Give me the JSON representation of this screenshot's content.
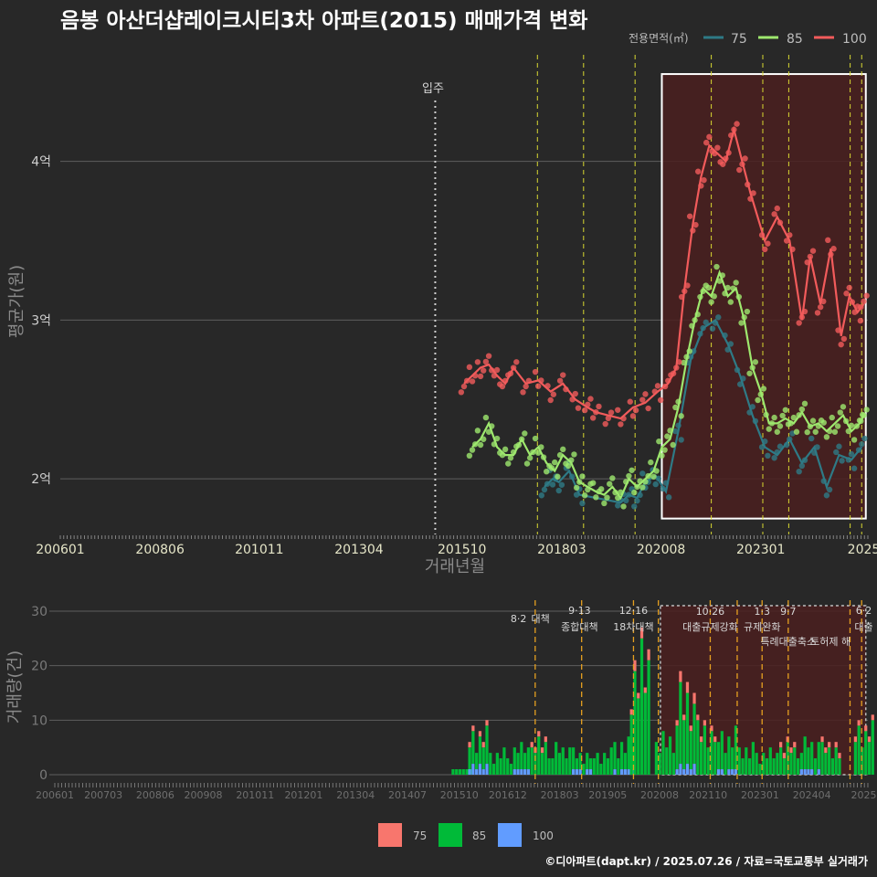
{
  "title": "음봉 아산더샵레이크시티3차 아파트(2015) 매매가격 변화",
  "credit": "©디아파트(dapt.kr) / 2025.07.26 / 자료=국토교통부 실거래가",
  "legend_top": {
    "label": "전용면적(㎡)",
    "items": [
      {
        "name": "75",
        "color": "#2e7a86"
      },
      {
        "name": "85",
        "color": "#9ee86e"
      },
      {
        "name": "100",
        "color": "#f25b5b"
      }
    ]
  },
  "legend_bottom": {
    "items": [
      {
        "name": "75",
        "color": "#f8766d"
      },
      {
        "name": "85",
        "color": "#00ba38"
      },
      {
        "name": "100",
        "color": "#619cff"
      }
    ]
  },
  "movein_label": "입주",
  "chart_data": [
    {
      "type": "line",
      "title": "음봉 아산더샵레이크시티3차 아파트(2015) 매매가격 변화",
      "xlabel": "거래년월",
      "ylabel": "평균가(원)",
      "x_ticks": [
        "200601",
        "200806",
        "201011",
        "201304",
        "201510",
        "201803",
        "202008",
        "202301",
        "2025"
      ],
      "y_ticks": [
        {
          "value": 2,
          "label": "2억"
        },
        {
          "value": 3,
          "label": "3억"
        },
        {
          "value": 4,
          "label": "4억"
        }
      ],
      "xlim": [
        2006.0,
        2025.6
      ],
      "ylim": [
        1.65,
        4.7
      ],
      "movein_year": 2015.1,
      "policy_lines_year": [
        2017.58,
        2018.7,
        2019.95,
        2021.8,
        2023.05,
        2023.68,
        2025.17,
        2025.45
      ],
      "highlight_range_year": [
        2020.6,
        2025.55
      ],
      "highlight_y_range": [
        1.75,
        4.55
      ],
      "series": [
        {
          "name": "75",
          "x": [
            2017.75,
            2017.95,
            2018.1,
            2018.35,
            2018.6,
            2019.6,
            2019.8,
            2020.0,
            2020.2,
            2020.45,
            2020.7,
            2021.0,
            2021.3,
            2021.6,
            2021.9,
            2022.2,
            2022.5,
            2022.8,
            2023.1,
            2023.4,
            2023.7,
            2024.0,
            2024.3,
            2024.6,
            2024.9,
            2025.2,
            2025.45
          ],
          "y": [
            1.95,
            2.0,
            1.98,
            2.05,
            1.9,
            1.85,
            1.9,
            1.88,
            1.98,
            2.02,
            1.92,
            2.3,
            2.75,
            2.95,
            3.0,
            2.85,
            2.65,
            2.4,
            2.2,
            2.15,
            2.25,
            2.1,
            2.2,
            1.95,
            2.15,
            2.12,
            2.2
          ]
        },
        {
          "name": "85",
          "x": [
            2016.0,
            2016.2,
            2016.4,
            2016.6,
            2016.8,
            2017.0,
            2017.2,
            2017.4,
            2017.6,
            2017.8,
            2018.0,
            2018.2,
            2018.4,
            2018.6,
            2018.8,
            2019.0,
            2019.2,
            2019.4,
            2019.6,
            2019.8,
            2020.0,
            2020.2,
            2020.4,
            2020.6,
            2020.8,
            2021.0,
            2021.2,
            2021.4,
            2021.6,
            2021.8,
            2022.0,
            2022.2,
            2022.4,
            2022.6,
            2022.8,
            2023.0,
            2023.2,
            2023.4,
            2023.6,
            2023.8,
            2024.0,
            2024.2,
            2024.4,
            2024.6,
            2024.8,
            2025.0,
            2025.2,
            2025.4,
            2025.5
          ],
          "y": [
            2.2,
            2.25,
            2.35,
            2.2,
            2.15,
            2.15,
            2.25,
            2.15,
            2.2,
            2.1,
            2.05,
            2.15,
            2.1,
            1.98,
            1.95,
            1.92,
            1.9,
            1.95,
            1.88,
            2.0,
            1.95,
            2.0,
            2.05,
            2.2,
            2.25,
            2.45,
            2.75,
            3.0,
            3.2,
            3.15,
            3.3,
            3.15,
            3.2,
            3.0,
            2.7,
            2.55,
            2.35,
            2.35,
            2.38,
            2.35,
            2.42,
            2.33,
            2.35,
            2.3,
            2.35,
            2.4,
            2.3,
            2.35,
            2.4
          ]
        },
        {
          "name": "100",
          "x": [
            2015.8,
            2016.0,
            2016.2,
            2016.4,
            2016.6,
            2016.8,
            2017.0,
            2017.3,
            2017.6,
            2017.9,
            2018.2,
            2018.5,
            2018.8,
            2019.0,
            2019.3,
            2019.6,
            2019.9,
            2020.2,
            2020.5,
            2020.75,
            2020.95,
            2021.15,
            2021.35,
            2021.55,
            2021.75,
            2021.95,
            2022.15,
            2022.35,
            2022.55,
            2022.75,
            2023.1,
            2023.4,
            2023.7,
            2024.0,
            2024.2,
            2024.45,
            2024.7,
            2024.95,
            2025.15,
            2025.35,
            2025.5
          ],
          "y": [
            2.6,
            2.65,
            2.7,
            2.72,
            2.65,
            2.6,
            2.7,
            2.6,
            2.62,
            2.55,
            2.6,
            2.5,
            2.45,
            2.42,
            2.4,
            2.38,
            2.45,
            2.48,
            2.55,
            2.6,
            2.7,
            3.2,
            3.6,
            3.9,
            4.1,
            4.05,
            4.0,
            4.2,
            4.0,
            3.8,
            3.5,
            3.65,
            3.5,
            3.0,
            3.4,
            3.1,
            3.45,
            2.9,
            3.15,
            3.05,
            3.1
          ]
        }
      ]
    },
    {
      "type": "bar",
      "stacked": true,
      "ylabel": "거래량(건)",
      "x_ticks": [
        "200601",
        "200703",
        "200806",
        "200908",
        "201011",
        "201201",
        "201304",
        "201407",
        "201510",
        "201612",
        "201803",
        "201905",
        "202008",
        "202110",
        "202301",
        "202404",
        "2025"
      ],
      "y_ticks": [
        0,
        10,
        20,
        30
      ],
      "ylim": [
        0,
        32
      ],
      "annotations": [
        {
          "date": "8·2",
          "text": "대책"
        },
        {
          "date": "9·13",
          "text": "종합대책"
        },
        {
          "date": "12·16",
          "text": "18차대책"
        },
        {
          "date": "10·26",
          "text": "대출규제강화"
        },
        {
          "date": "1·3",
          "text": "규제완화"
        },
        {
          "date": "9·7",
          "text": "특례대출축소"
        },
        {
          "date": "",
          "text": "토허제 해"
        },
        {
          "date": "6·2",
          "text": "대출"
        }
      ],
      "series": [
        {
          "name": "85",
          "values_by_period": [
            {
              "period": "2015.6",
              "value": 1
            },
            {
              "period": "2016.0",
              "value": 7
            },
            {
              "period": "2016.5",
              "value": 5
            },
            {
              "period": "2017.0",
              "value": 5
            },
            {
              "period": "2017.5",
              "value": 7
            },
            {
              "period": "2018.0",
              "value": 6
            },
            {
              "period": "2018.5",
              "value": 4
            },
            {
              "period": "2019.0",
              "value": 5
            },
            {
              "period": "2019.5",
              "value": 6
            },
            {
              "period": "2019.9",
              "value": 25
            },
            {
              "period": "2020.5",
              "value": 8
            },
            {
              "period": "2021.0",
              "value": 15
            },
            {
              "period": "2021.5",
              "value": 10
            },
            {
              "period": "2022.0",
              "value": 8
            },
            {
              "period": "2022.5",
              "value": 6
            },
            {
              "period": "2023.0",
              "value": 5
            },
            {
              "period": "2023.5",
              "value": 6
            },
            {
              "period": "2024.0",
              "value": 6
            },
            {
              "period": "2024.5",
              "value": 6
            },
            {
              "period": "2025.3",
              "value": 10
            }
          ]
        },
        {
          "name": "75",
          "values_by_period": [
            {
              "period": "2016.0",
              "value": 1
            },
            {
              "period": "2017.5",
              "value": 1
            },
            {
              "period": "2019.9",
              "value": 2
            },
            {
              "period": "2021.0",
              "value": 2
            },
            {
              "period": "2021.5",
              "value": 1
            },
            {
              "period": "2023.5",
              "value": 1
            },
            {
              "period": "2024.5",
              "value": 1
            },
            {
              "period": "2025.3",
              "value": 1
            }
          ]
        },
        {
          "name": "100",
          "values_by_period": [
            {
              "period": "2016.0",
              "value": 2
            },
            {
              "period": "2017.0",
              "value": 1
            },
            {
              "period": "2018.5",
              "value": 1
            },
            {
              "period": "2019.5",
              "value": 1
            },
            {
              "period": "2021.0",
              "value": 2
            },
            {
              "period": "2022.0",
              "value": 1
            },
            {
              "period": "2024.0",
              "value": 1
            }
          ]
        }
      ]
    }
  ]
}
